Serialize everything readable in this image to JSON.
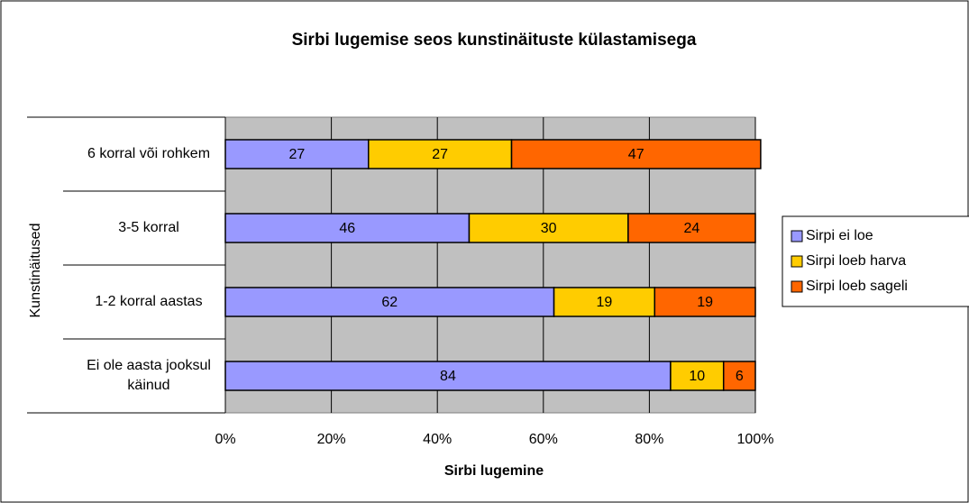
{
  "chart_data": {
    "type": "bar",
    "orientation": "horizontal",
    "stacked": true,
    "title": "Sirbi lugemise seos kunstinäituste külastamisega",
    "xlabel": "Sirbi lugemine",
    "ylabel": "Kunstinäitused",
    "categories": [
      "6 korral või rohkem",
      "3-5 korral",
      "1-2 korral aastas",
      "Ei ole aasta jooksul käinud"
    ],
    "series": [
      {
        "name": "Sirpi ei loe",
        "color": "#9999ff",
        "values": [
          27,
          46,
          62,
          84
        ]
      },
      {
        "name": "Sirpi loeb harva",
        "color": "#ffcc00",
        "values": [
          27,
          30,
          19,
          10
        ]
      },
      {
        "name": "Sirpi loeb sageli",
        "color": "#ff6600",
        "values": [
          47,
          24,
          19,
          6
        ]
      }
    ],
    "xlim": [
      0,
      100
    ],
    "xticks": [
      {
        "value": 0,
        "label": "0%"
      },
      {
        "value": 20,
        "label": "20%"
      },
      {
        "value": 40,
        "label": "40%"
      },
      {
        "value": 60,
        "label": "60%"
      },
      {
        "value": 80,
        "label": "80%"
      },
      {
        "value": 100,
        "label": "100%"
      }
    ],
    "grid": true,
    "legend": "right"
  }
}
